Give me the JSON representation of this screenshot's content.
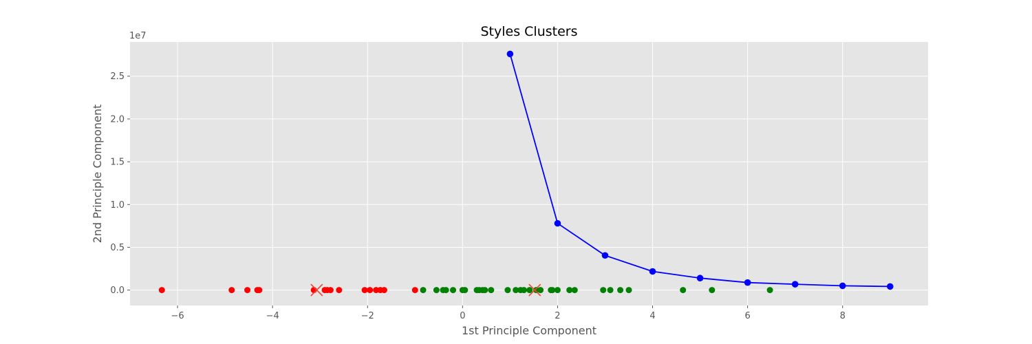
{
  "chart_data": {
    "type": "scatter",
    "title": "Styles Clusters",
    "xlabel": "1st Principle Component",
    "ylabel": "2nd Principle Component",
    "y_offset_label": "1e7",
    "y_multiplier": 10000000,
    "xlim": [
      -7.0,
      9.8
    ],
    "ylim": [
      -1800000,
      29000000
    ],
    "grid": true,
    "background": "#e5e5e5",
    "x_ticks": [
      -6,
      -4,
      -2,
      0,
      2,
      4,
      6,
      8
    ],
    "x_tick_labels": [
      "−6",
      "−4",
      "−2",
      "0",
      "2",
      "4",
      "6",
      "8"
    ],
    "y_ticks": [
      0,
      5000000,
      10000000,
      15000000,
      20000000,
      25000000
    ],
    "y_tick_labels": [
      "0.0",
      "0.5",
      "1.0",
      "1.5",
      "2.0",
      "2.5"
    ],
    "series": [
      {
        "type": "scatter",
        "color": "#ff0000",
        "x": [
          -6.33,
          -4.86,
          -4.53,
          -4.32,
          -4.28,
          -3.13,
          -2.9,
          -2.85,
          -2.78,
          -2.6,
          -2.06,
          -1.95,
          -1.82,
          -1.73,
          -1.65,
          -1.0
        ],
        "y": [
          0,
          0,
          0,
          0,
          0,
          0,
          0,
          0,
          0,
          0,
          0,
          0,
          0,
          0,
          0,
          0
        ]
      },
      {
        "type": "scatter",
        "color": "#008000",
        "x": [
          -0.83,
          -0.55,
          -0.41,
          -0.35,
          -0.2,
          0.0,
          0.05,
          0.3,
          0.35,
          0.42,
          0.47,
          0.6,
          0.95,
          1.12,
          1.22,
          1.29,
          1.41,
          1.55,
          1.64,
          1.86,
          1.89,
          2.0,
          2.25,
          2.36,
          2.96,
          3.11,
          3.32,
          3.5,
          4.64,
          5.25,
          6.47
        ],
        "y": [
          0,
          0,
          0,
          0,
          0,
          0,
          0,
          0,
          0,
          0,
          0,
          0,
          0,
          0,
          0,
          0,
          0,
          0,
          0,
          0,
          0,
          0,
          0,
          0,
          0,
          0,
          0,
          0,
          0,
          0,
          0
        ]
      },
      {
        "type": "line",
        "color": "#0000ff",
        "x": [
          1,
          2,
          3,
          4,
          5,
          6,
          7,
          8,
          9
        ],
        "y": [
          27600000,
          7800000,
          4050000,
          2180000,
          1400000,
          880000,
          680000,
          500000,
          420000
        ]
      },
      {
        "type": "centroids",
        "color": "#e8472d",
        "x": [
          -3.07,
          1.52
        ],
        "y": [
          0,
          0
        ]
      }
    ]
  }
}
